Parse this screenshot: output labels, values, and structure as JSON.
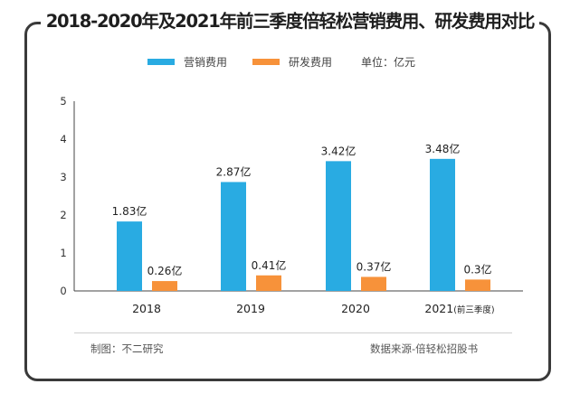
{
  "chart_data": {
    "type": "bar",
    "title": "2018-2020年及2021年前三季度倍轻松营销费用、研发费用对比",
    "categories": [
      "2018",
      "2019",
      "2020",
      "2021"
    ],
    "category_suffix": [
      "",
      "",
      "",
      "(前三季度)"
    ],
    "series": [
      {
        "name": "营销费用",
        "color": "#29ABE2",
        "values": [
          1.83,
          2.87,
          3.42,
          3.48
        ],
        "labels": [
          "1.83亿",
          "2.87亿",
          "3.42亿",
          "3.48亿"
        ]
      },
      {
        "name": "研发费用",
        "color": "#F7923A",
        "values": [
          0.26,
          0.41,
          0.37,
          0.3
        ],
        "labels": [
          "0.26亿",
          "0.41亿",
          "0.37亿",
          "0.3亿"
        ]
      }
    ],
    "unit_label": "单位：亿元",
    "ylim": [
      0,
      5
    ],
    "yticks": [
      0,
      1,
      2,
      3,
      4,
      5
    ],
    "xlabel": "",
    "ylabel": "",
    "grid": false,
    "legend": "top-center"
  },
  "footer": {
    "left": "制图：不二研究",
    "right": "数据来源-倍轻松招股书"
  }
}
